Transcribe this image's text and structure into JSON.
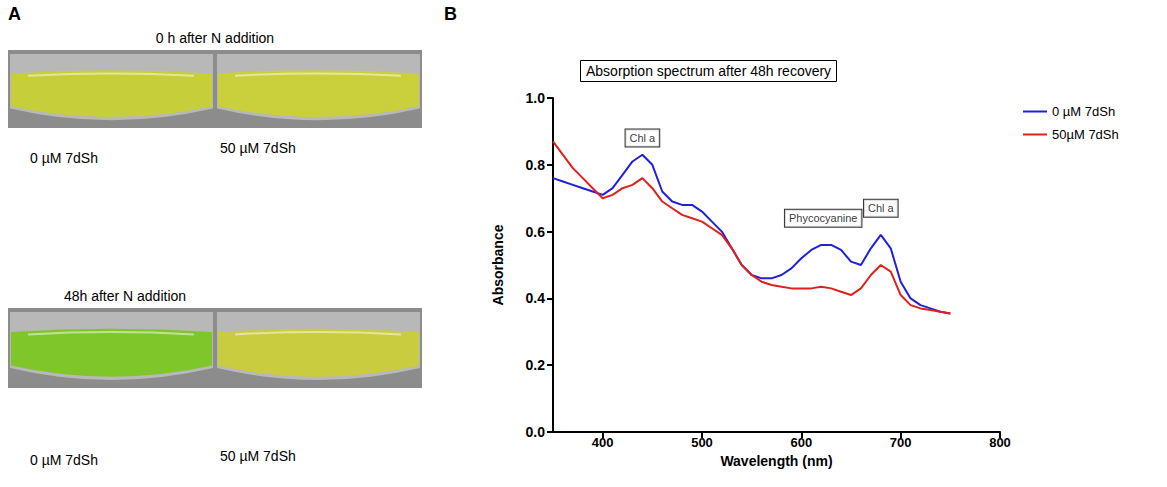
{
  "photo_panel": {
    "panel_label": "A",
    "rows": [
      {
        "caption": "0 h after N addition",
        "labels": [
          "0 µM 7dSh",
          "50 µM 7dSh"
        ]
      },
      {
        "caption": "48h after N addition",
        "labels": [
          "0 µM 7dSh",
          "50 µM 7dSh"
        ]
      }
    ]
  },
  "chart_data": {
    "panel_label": "B",
    "type": "line",
    "title": "Absorption spectrum after 48h recovery",
    "x_label": "Wavelength (nm)",
    "y_label": "Absorbance",
    "x": [
      350,
      360,
      370,
      380,
      390,
      400,
      410,
      420,
      430,
      440,
      450,
      460,
      470,
      480,
      490,
      500,
      510,
      520,
      530,
      540,
      550,
      560,
      570,
      580,
      590,
      600,
      610,
      620,
      630,
      640,
      650,
      660,
      670,
      680,
      690,
      700,
      710,
      720,
      730,
      740,
      750
    ],
    "series": [
      {
        "name": "0 µM 7dSh",
        "color": "#2020d8",
        "values": [
          0.76,
          0.75,
          0.74,
          0.73,
          0.72,
          0.71,
          0.73,
          0.77,
          0.81,
          0.83,
          0.8,
          0.72,
          0.69,
          0.68,
          0.68,
          0.66,
          0.63,
          0.6,
          0.55,
          0.5,
          0.47,
          0.46,
          0.46,
          0.47,
          0.49,
          0.52,
          0.545,
          0.56,
          0.56,
          0.545,
          0.51,
          0.5,
          0.55,
          0.59,
          0.55,
          0.45,
          0.4,
          0.38,
          0.37,
          0.36,
          0.355
        ]
      },
      {
        "name": "50µM 7dSh",
        "color": "#e0201b",
        "values": [
          0.87,
          0.83,
          0.79,
          0.76,
          0.73,
          0.7,
          0.71,
          0.73,
          0.74,
          0.76,
          0.73,
          0.69,
          0.67,
          0.65,
          0.64,
          0.63,
          0.61,
          0.59,
          0.55,
          0.5,
          0.47,
          0.45,
          0.44,
          0.435,
          0.43,
          0.43,
          0.43,
          0.435,
          0.43,
          0.42,
          0.41,
          0.43,
          0.47,
          0.5,
          0.48,
          0.41,
          0.38,
          0.37,
          0.365,
          0.36,
          0.355
        ]
      }
    ],
    "xlim": [
      350,
      800
    ],
    "xticks": [
      400,
      500,
      600,
      700,
      800
    ],
    "ylim": [
      0,
      1
    ],
    "yticks": [
      {
        "value": 0,
        "label": "0.0"
      },
      0.2,
      0.4,
      0.6,
      0.8,
      {
        "value": 1,
        "label": "1.0"
      }
    ],
    "annotations": [
      {
        "text": "Chl a",
        "x": 440,
        "y": 0.88
      },
      {
        "text": "Phycocyanine",
        "x": 622,
        "y": 0.64
      },
      {
        "text": "Chl a",
        "x": 680,
        "y": 0.67
      }
    ],
    "legend": "right",
    "grid": false
  }
}
